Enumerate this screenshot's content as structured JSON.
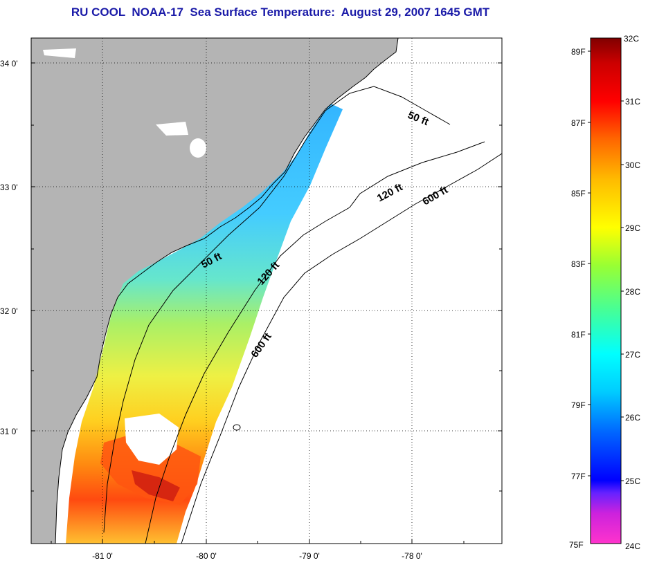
{
  "title": "RU COOL  NOAA-17  Sea Surface Temperature:  August 29, 2007 1645 GMT",
  "map": {
    "latitude_labels": [
      "34 0'",
      "33 0'",
      "32 0'",
      "31 0'"
    ],
    "longitude_labels": [
      "-81 0'",
      "-80 0'",
      "-79 0'",
      "-78 0'"
    ],
    "grid": "dotted",
    "land_color": "#b4b4b4",
    "cloud_color": "#ffffff",
    "isobath_labels": [
      "50 ft",
      "50 ft",
      "120 ft",
      "120 ft",
      "600 ft",
      "600 ft"
    ]
  },
  "colorbar": {
    "fahrenheit_labels": [
      "89F",
      "87F",
      "85F",
      "83F",
      "81F",
      "79F",
      "77F",
      "75F"
    ],
    "celsius_labels": [
      "32C",
      "31C",
      "30C",
      "29C",
      "28C",
      "27C",
      "26C",
      "25C",
      "24C"
    ],
    "range_celsius": [
      24,
      32
    ],
    "colors": [
      "#ff33cc",
      "#aa22dd",
      "#6600ff",
      "#0000ff",
      "#0066ff",
      "#00bbff",
      "#00ffff",
      "#33ff99",
      "#99ff33",
      "#ffff00",
      "#ffbb00",
      "#ff6600",
      "#ff0000",
      "#cc0000",
      "#800000"
    ]
  }
}
